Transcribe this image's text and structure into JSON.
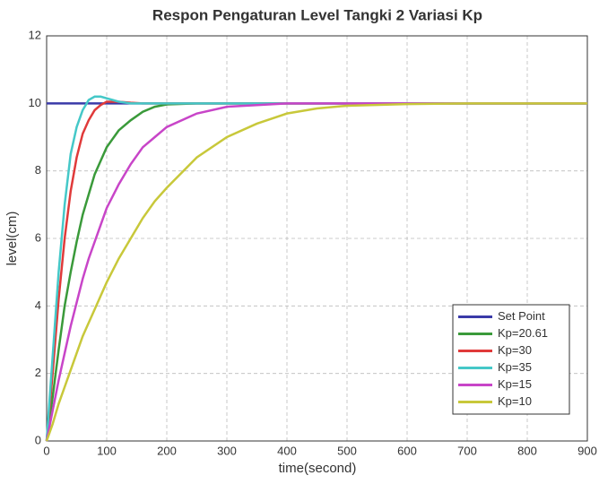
{
  "chart_data": {
    "type": "line",
    "title": "Respon Pengaturan Level Tangki 2 Variasi Kp",
    "xlabel": "time(second)",
    "ylabel": "level(cm)",
    "x": [
      0,
      10,
      20,
      30,
      40,
      50,
      60,
      70,
      80,
      90,
      100,
      120,
      140,
      160,
      180,
      200,
      250,
      300,
      350,
      400,
      450,
      500,
      600,
      700,
      800,
      900
    ],
    "series": [
      {
        "name": "Set Point",
        "color": "#3a3aa8",
        "values": [
          10,
          10,
          10,
          10,
          10,
          10,
          10,
          10,
          10,
          10,
          10,
          10,
          10,
          10,
          10,
          10,
          10,
          10,
          10,
          10,
          10,
          10,
          10,
          10,
          10,
          10
        ]
      },
      {
        "name": "Kp=20.61",
        "color": "#3a9a3a",
        "values": [
          0,
          1.3,
          2.7,
          4,
          5,
          5.9,
          6.7,
          7.3,
          7.9,
          8.3,
          8.7,
          9.2,
          9.5,
          9.75,
          9.9,
          9.97,
          10,
          10,
          10,
          10,
          10,
          10,
          10,
          10,
          10,
          10
        ]
      },
      {
        "name": "Kp=30",
        "color": "#e03a3a",
        "values": [
          0,
          2,
          4.2,
          6,
          7.4,
          8.4,
          9.1,
          9.5,
          9.8,
          9.95,
          10.05,
          10.05,
          10.02,
          10,
          10,
          10,
          10,
          10,
          10,
          10,
          10,
          10,
          10,
          10,
          10,
          10
        ]
      },
      {
        "name": "Kp=35",
        "color": "#45c8c8",
        "values": [
          0,
          2.5,
          5,
          7,
          8.5,
          9.3,
          9.8,
          10.1,
          10.2,
          10.2,
          10.15,
          10.05,
          10,
          10,
          10,
          10,
          10,
          10,
          10,
          10,
          10,
          10,
          10,
          10,
          10,
          10
        ]
      },
      {
        "name": "Kp=15",
        "color": "#c845c8",
        "values": [
          0,
          0.9,
          1.8,
          2.6,
          3.4,
          4.1,
          4.8,
          5.4,
          5.9,
          6.4,
          6.9,
          7.6,
          8.2,
          8.7,
          9,
          9.3,
          9.7,
          9.9,
          9.95,
          10,
          10,
          10,
          10,
          10,
          10,
          10
        ]
      },
      {
        "name": "Kp=10",
        "color": "#c8c83a",
        "values": [
          0,
          0.5,
          1.1,
          1.6,
          2.1,
          2.6,
          3.1,
          3.5,
          3.9,
          4.3,
          4.7,
          5.4,
          6,
          6.6,
          7.1,
          7.5,
          8.4,
          9,
          9.4,
          9.7,
          9.85,
          9.93,
          9.98,
          10,
          10,
          10
        ]
      }
    ],
    "xlim": [
      0,
      900
    ],
    "xticks": [
      0,
      100,
      200,
      300,
      400,
      500,
      600,
      700,
      800,
      900
    ],
    "ylim": [
      0,
      12
    ],
    "yticks": [
      0,
      2,
      4,
      6,
      8,
      10,
      12
    ],
    "grid": true,
    "legend": "lower right"
  }
}
